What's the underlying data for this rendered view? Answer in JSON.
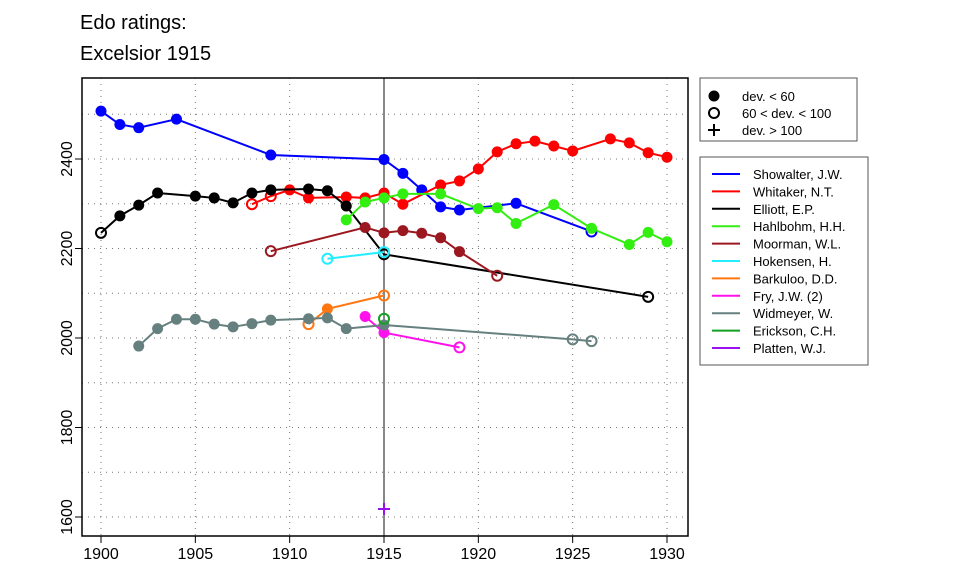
{
  "chart_data": {
    "type": "line",
    "title": [
      "Edo ratings:",
      "Excelsior 1915"
    ],
    "xlabel": "",
    "ylabel": "",
    "xlim": [
      1899,
      1931
    ],
    "ylim": [
      1580,
      2550
    ],
    "x_ticks": [
      1900,
      1905,
      1910,
      1915,
      1920,
      1925,
      1930
    ],
    "y_ticks": [
      1600,
      1800,
      2000,
      2200,
      2400
    ],
    "grid": true,
    "highlight_year": 1915,
    "marker_legend": [
      {
        "marker": "filled",
        "label": "dev. < 60"
      },
      {
        "marker": "open",
        "label": "60 < dev. < 100"
      },
      {
        "marker": "plus",
        "label": "dev. > 100"
      }
    ],
    "legend_position": "right",
    "series": [
      {
        "name": "Showalter, J.W.",
        "color": "#0000ff",
        "points": [
          [
            1900,
            2507,
            "f"
          ],
          [
            1901,
            2477,
            "f"
          ],
          [
            1902,
            2470,
            "f"
          ],
          [
            1904,
            2489,
            "f"
          ],
          [
            1909,
            2409,
            "f"
          ],
          [
            1915,
            2399,
            "f"
          ],
          [
            1916,
            2368,
            "f"
          ],
          [
            1917,
            2331,
            "f"
          ],
          [
            1918,
            2293,
            "f"
          ],
          [
            1919,
            2286,
            "f"
          ],
          [
            1922,
            2301,
            "f"
          ],
          [
            1926,
            2238,
            "o"
          ]
        ]
      },
      {
        "name": "Whitaker, N.T.",
        "color": "#ff0000",
        "points": [
          [
            1908,
            2299,
            "o"
          ],
          [
            1909,
            2317,
            "o"
          ],
          [
            1910,
            2331,
            "f"
          ],
          [
            1911,
            2313,
            "f"
          ],
          [
            1913,
            2315,
            "f"
          ],
          [
            1914,
            2313,
            "f"
          ],
          [
            1915,
            2324,
            "f"
          ],
          [
            1916,
            2299,
            "f"
          ],
          [
            1918,
            2342,
            "f"
          ],
          [
            1919,
            2351,
            "f"
          ],
          [
            1920,
            2378,
            "f"
          ],
          [
            1921,
            2416,
            "f"
          ],
          [
            1922,
            2434,
            "f"
          ],
          [
            1923,
            2440,
            "f"
          ],
          [
            1924,
            2429,
            "f"
          ],
          [
            1925,
            2418,
            "f"
          ],
          [
            1927,
            2445,
            "f"
          ],
          [
            1928,
            2436,
            "f"
          ],
          [
            1929,
            2414,
            "f"
          ],
          [
            1930,
            2404,
            "f"
          ]
        ]
      },
      {
        "name": "Elliott, E.P.",
        "color": "#000000",
        "points": [
          [
            1900,
            2235,
            "o"
          ],
          [
            1901,
            2273,
            "f"
          ],
          [
            1902,
            2297,
            "f"
          ],
          [
            1903,
            2324,
            "f"
          ],
          [
            1905,
            2317,
            "f"
          ],
          [
            1906,
            2313,
            "f"
          ],
          [
            1907,
            2302,
            "f"
          ],
          [
            1908,
            2324,
            "f"
          ],
          [
            1909,
            2331,
            "f"
          ],
          [
            1911,
            2333,
            "f"
          ],
          [
            1912,
            2329,
            "f"
          ],
          [
            1913,
            2295,
            "f"
          ],
          [
            1915,
            2187,
            "o"
          ],
          [
            1929,
            2092,
            "o"
          ]
        ]
      },
      {
        "name": "Hahlbohm, H.H.",
        "color": "#33ee11",
        "points": [
          [
            1913,
            2264,
            "f"
          ],
          [
            1914,
            2304,
            "f"
          ],
          [
            1915,
            2313,
            "f"
          ],
          [
            1916,
            2322,
            "f"
          ],
          [
            1918,
            2322,
            "f"
          ],
          [
            1920,
            2289,
            "f"
          ],
          [
            1921,
            2291,
            "f"
          ],
          [
            1922,
            2256,
            "f"
          ],
          [
            1924,
            2298,
            "f"
          ],
          [
            1926,
            2245,
            "f"
          ],
          [
            1928,
            2209,
            "f"
          ],
          [
            1929,
            2236,
            "f"
          ],
          [
            1930,
            2215,
            "f"
          ]
        ]
      },
      {
        "name": "Moorman, W.L.",
        "color": "#9b1820",
        "points": [
          [
            1909,
            2194,
            "o"
          ],
          [
            1914,
            2247,
            "f"
          ],
          [
            1915,
            2235,
            "f"
          ],
          [
            1916,
            2240,
            "f"
          ],
          [
            1917,
            2234,
            "f"
          ],
          [
            1918,
            2224,
            "f"
          ],
          [
            1919,
            2193,
            "f"
          ],
          [
            1921,
            2139,
            "o"
          ]
        ]
      },
      {
        "name": "Hokensen, H.",
        "color": "#22eeff",
        "points": [
          [
            1912,
            2177,
            "o"
          ],
          [
            1915,
            2192,
            "o"
          ]
        ]
      },
      {
        "name": "Barkuloo, D.D.",
        "color": "#ff7711",
        "points": [
          [
            1911,
            2031,
            "o"
          ],
          [
            1912,
            2065,
            "f"
          ],
          [
            1915,
            2095,
            "o"
          ]
        ]
      },
      {
        "name": "Fry, J.W. (2)",
        "color": "#ff11ee",
        "points": [
          [
            1914,
            2048,
            "f"
          ],
          [
            1915,
            2012,
            "f"
          ],
          [
            1919,
            1979,
            "o"
          ]
        ]
      },
      {
        "name": "Widmeyer, W.",
        "color": "#668080",
        "points": [
          [
            1902,
            1982,
            "f"
          ],
          [
            1903,
            2021,
            "f"
          ],
          [
            1904,
            2042,
            "f"
          ],
          [
            1905,
            2042,
            "f"
          ],
          [
            1906,
            2031,
            "f"
          ],
          [
            1907,
            2025,
            "f"
          ],
          [
            1908,
            2032,
            "f"
          ],
          [
            1909,
            2040,
            "f"
          ],
          [
            1911,
            2043,
            "f"
          ],
          [
            1912,
            2045,
            "f"
          ],
          [
            1913,
            2021,
            "f"
          ],
          [
            1915,
            2029,
            "f"
          ],
          [
            1925,
            1997,
            "o"
          ],
          [
            1926,
            1993,
            "o"
          ]
        ]
      },
      {
        "name": "Erickson, C.H.",
        "color": "#11a022",
        "points": [
          [
            1915,
            2043,
            "o"
          ]
        ]
      },
      {
        "name": "Platten, W.J.",
        "color": "#9911ee",
        "points": [
          [
            1915,
            1618,
            "p"
          ]
        ]
      }
    ]
  }
}
